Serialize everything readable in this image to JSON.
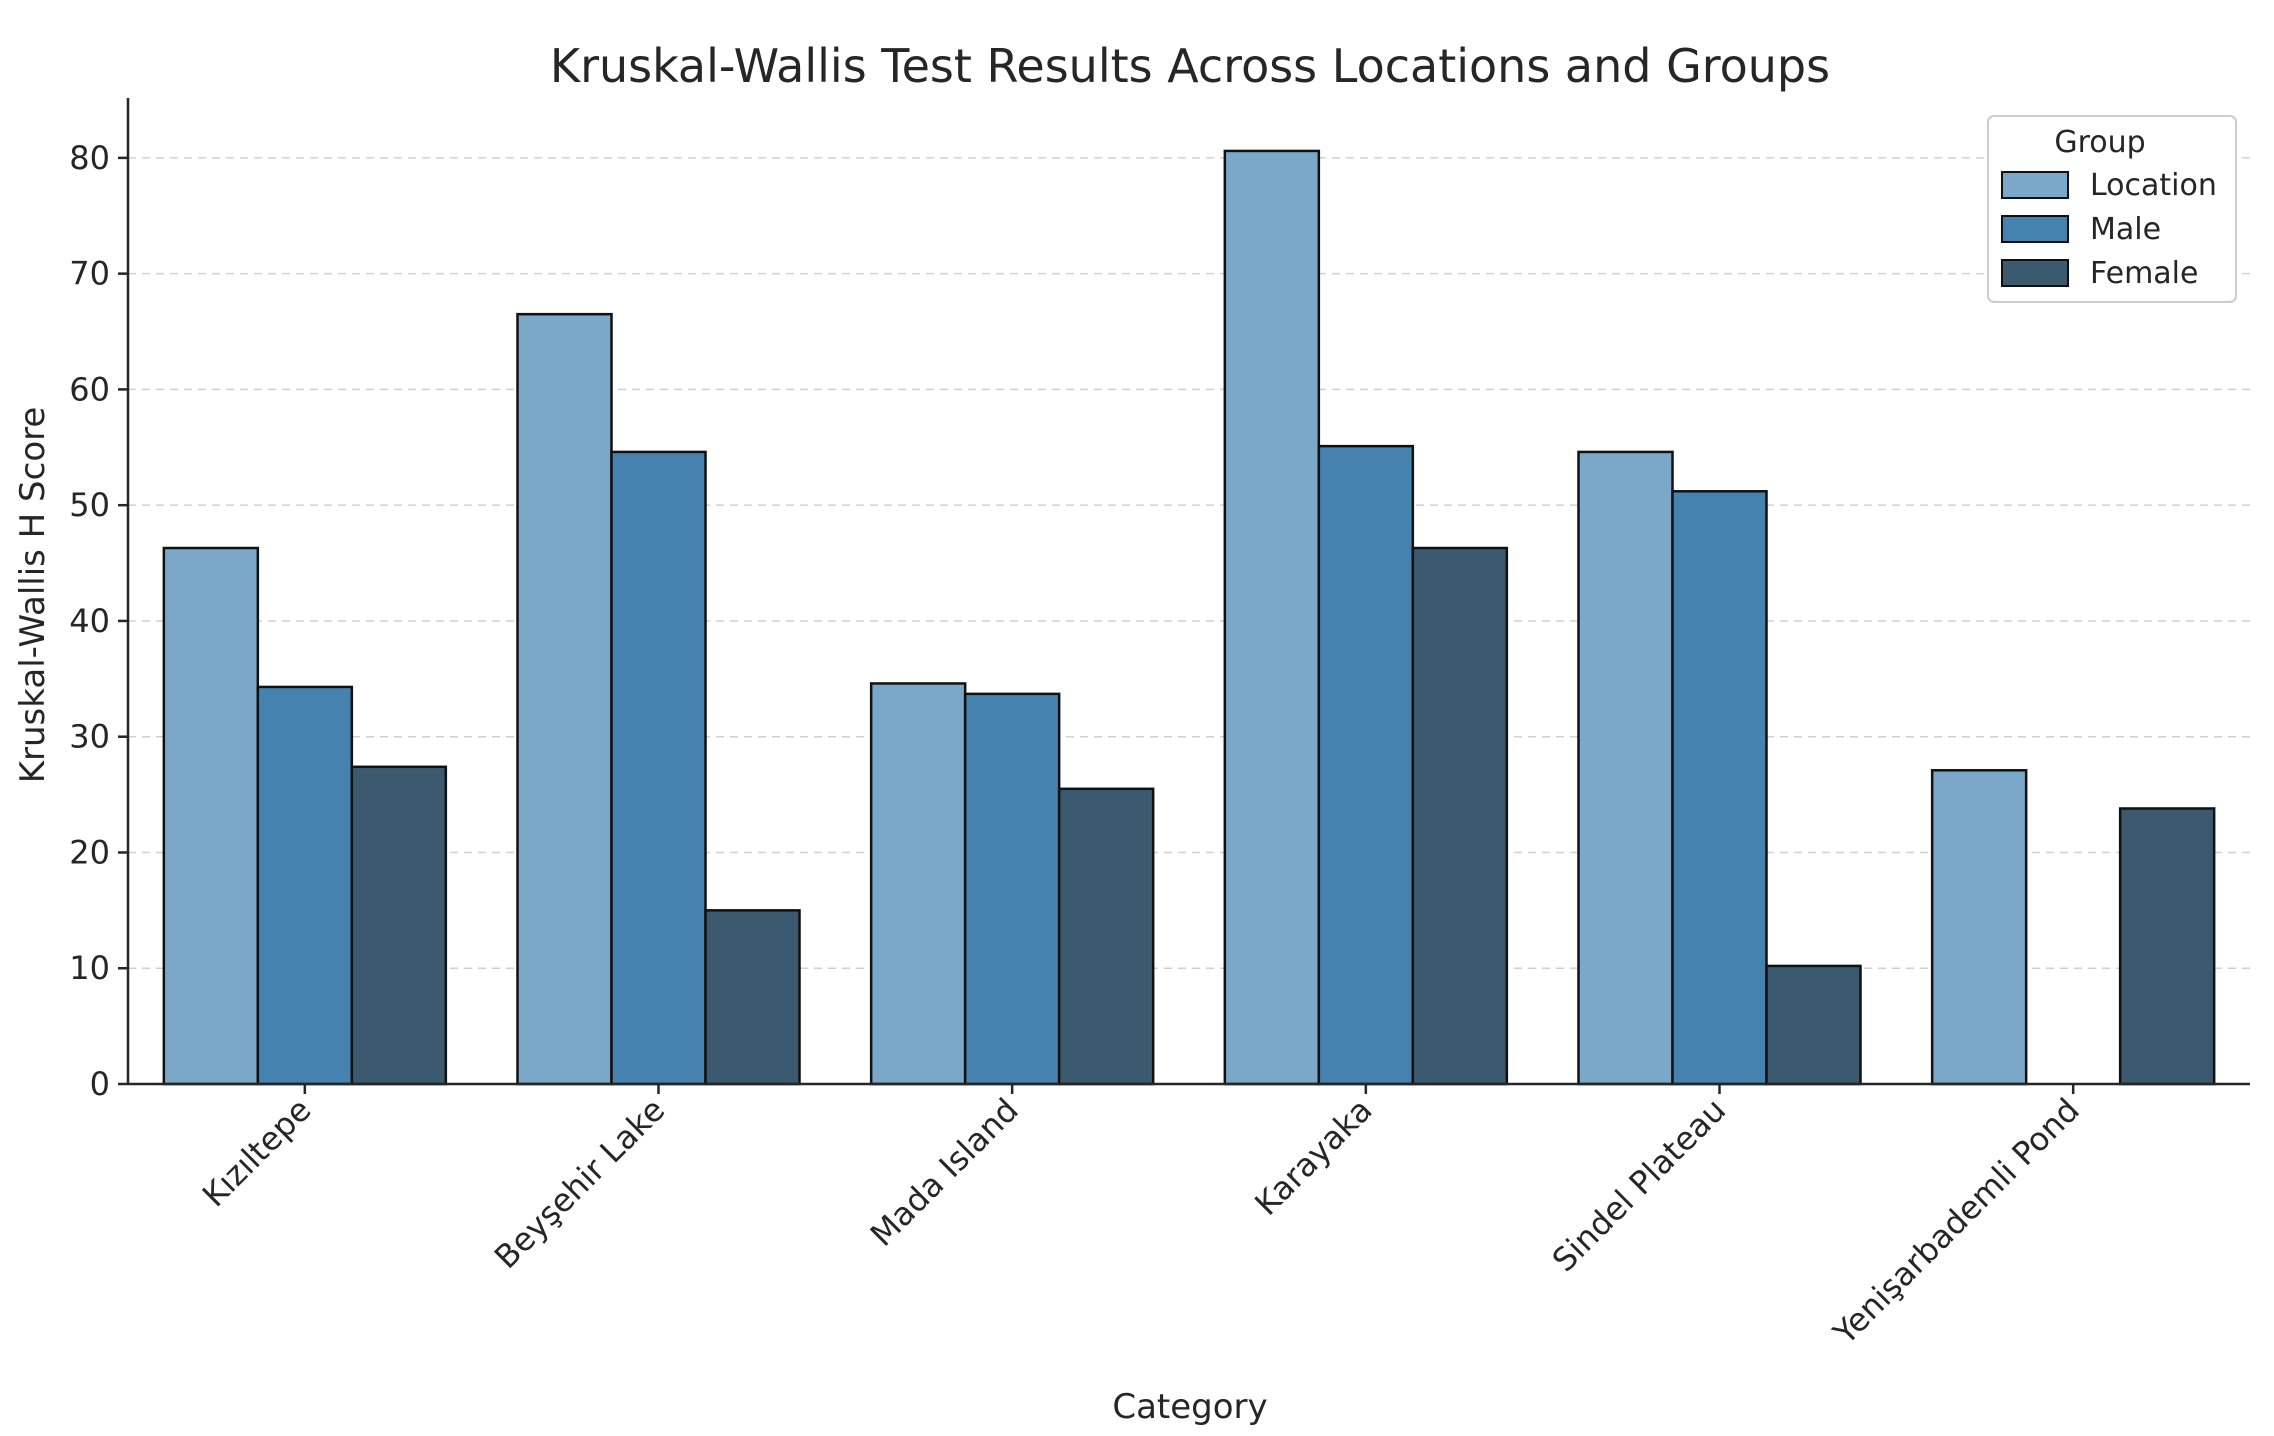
{
  "chart_data": {
    "type": "bar",
    "title": "Kruskal-Wallis Test Results Across Locations and Groups",
    "xlabel": "Category",
    "ylabel": "Kruskal-Wallis H Score",
    "categories": [
      "Kızıltepe",
      "Beyşehir Lake",
      "Mada Island",
      "Karayaka",
      "Sindel Plateau",
      "Yenişarbademli Pond"
    ],
    "series": [
      {
        "name": "Location",
        "color": "#7ba7c8",
        "values": [
          46.3,
          66.5,
          34.6,
          80.6,
          54.6,
          27.1
        ]
      },
      {
        "name": "Male",
        "color": "#4682b0",
        "values": [
          34.3,
          54.6,
          33.7,
          55.1,
          51.2,
          null
        ]
      },
      {
        "name": "Female",
        "color": "#3b5a70",
        "values": [
          27.4,
          15.0,
          25.5,
          46.3,
          10.2,
          23.8
        ]
      }
    ],
    "ylim": [
      0,
      85
    ],
    "yticks": [
      0,
      10,
      20,
      30,
      40,
      50,
      60,
      70,
      80
    ],
    "grid": "y-dashed",
    "legend": {
      "title": "Group",
      "placement": "top-right"
    }
  }
}
